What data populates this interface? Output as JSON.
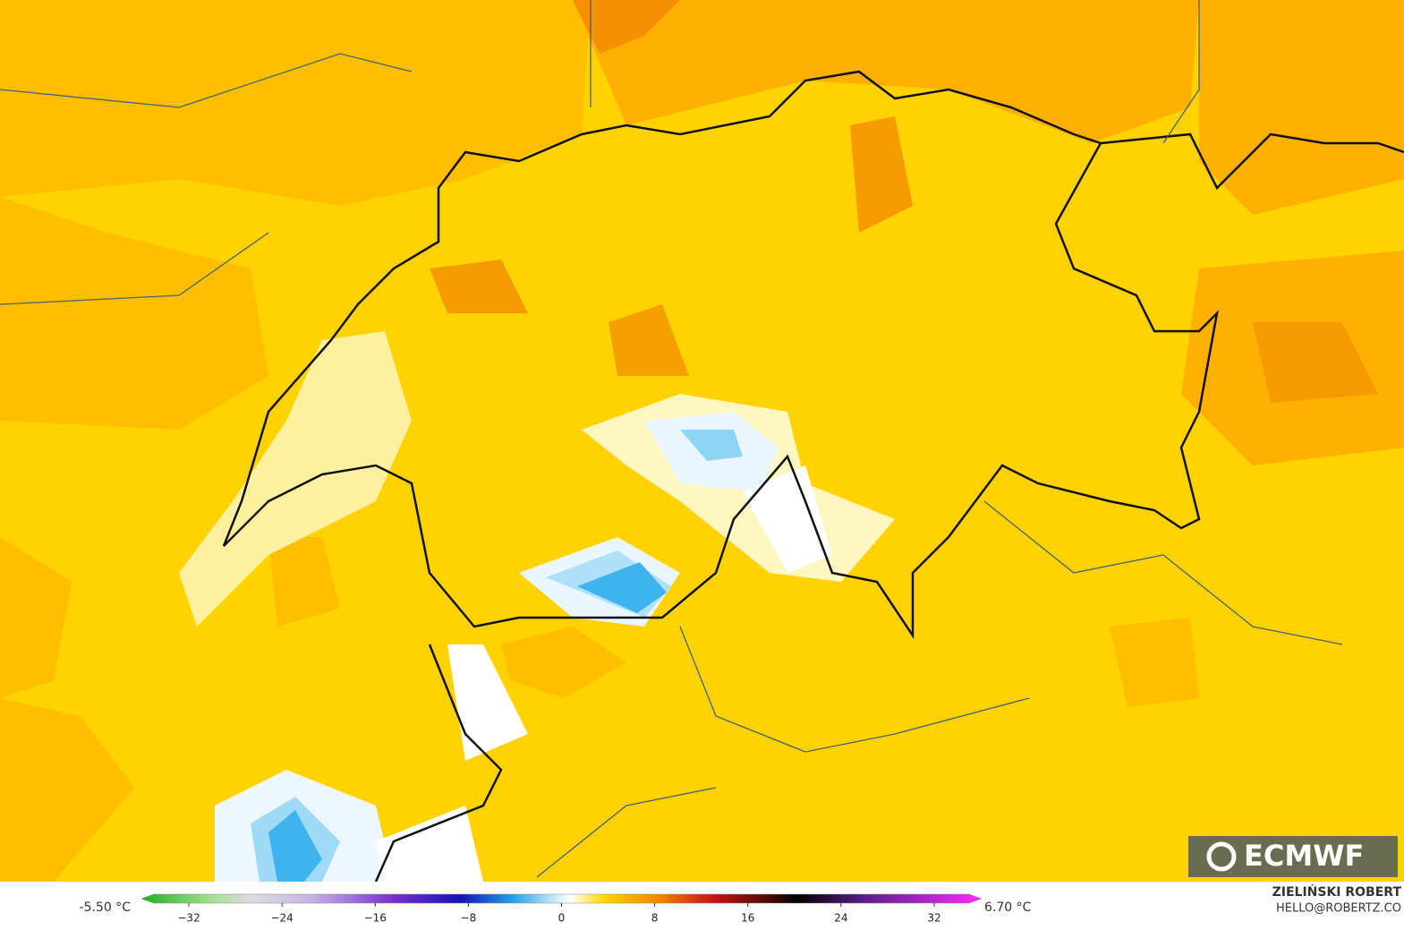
{
  "map": {
    "min_label": "-5.50 °C",
    "max_label": "6.70 °C"
  },
  "colorbar": {
    "range": [
      -35,
      35
    ],
    "ticks": [
      {
        "value": -32,
        "label": "−32"
      },
      {
        "value": -24,
        "label": "−24"
      },
      {
        "value": -16,
        "label": "−16"
      },
      {
        "value": -8,
        "label": "−8"
      },
      0,
      8,
      16,
      24,
      32
    ]
  },
  "credit": {
    "name": "ZIELIŃSKI ROBERT",
    "email": "HELLO@ROBERTZ.CO"
  },
  "logo": "ECMWF"
}
